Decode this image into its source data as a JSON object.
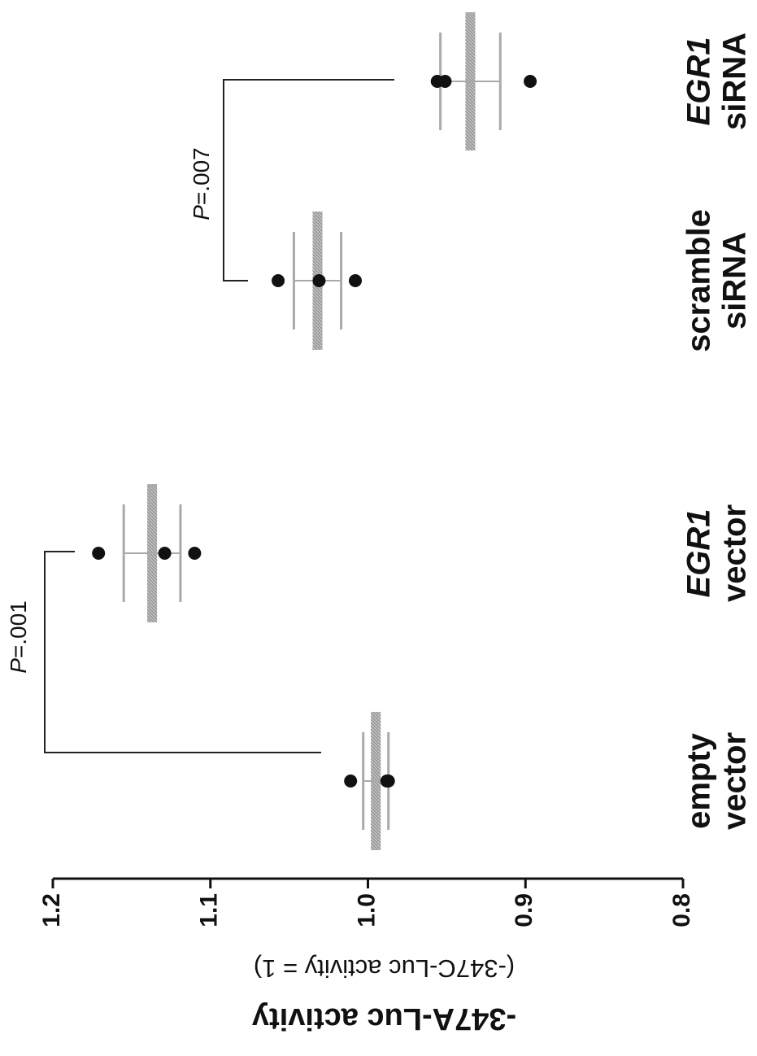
{
  "chart_data": {
    "type": "dotplot",
    "y_label": "-347A-Luc activity",
    "y_sublabel": "(-347C-Luc activity = 1)",
    "categories": [
      [
        "empty",
        "vector"
      ],
      [
        "EGR1",
        "vector"
      ],
      [
        "scramble",
        "siRNA"
      ],
      [
        "EGR1",
        "siRNA"
      ]
    ],
    "italic_terms": [
      "EGR1"
    ],
    "points": [
      [
        1.011,
        0.987,
        0.988
      ],
      [
        1.171,
        1.129,
        1.11
      ],
      [
        1.057,
        1.031,
        1.008
      ],
      [
        0.956,
        0.951,
        0.897
      ]
    ],
    "means": [
      0.995,
      1.137,
      1.032,
      0.935
    ],
    "errors": [
      0.008,
      0.018,
      0.015,
      0.019
    ],
    "ylim": [
      0.8,
      1.2
    ],
    "yticks": [
      1.2,
      1.1,
      {
        "value": 1,
        "label": "1.0"
      },
      0.9,
      0.8
    ],
    "annotations": [
      {
        "italic": "P",
        "text": "=.001"
      },
      {
        "italic": "P",
        "text": "=.007"
      }
    ]
  }
}
